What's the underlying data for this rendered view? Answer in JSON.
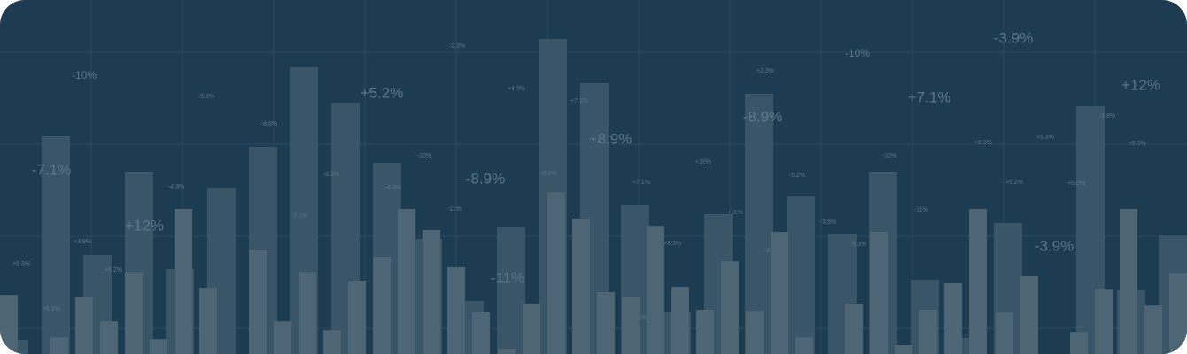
{
  "colors": {
    "background": "#1e3c51",
    "bar_back": "#3a5567",
    "bar_front": "#4d6575",
    "label": "#5d7688",
    "grid": "#35536a"
  },
  "back_bars": [
    {
      "id": 0,
      "value": 0.04
    },
    {
      "id": 1,
      "value": 0.615
    },
    {
      "id": 2,
      "value": 0.28
    },
    {
      "id": 3,
      "value": 0.515
    },
    {
      "id": 4,
      "value": 0.24
    },
    {
      "id": 5,
      "value": 0.47
    },
    {
      "id": 6,
      "value": 0.585
    },
    {
      "id": 7,
      "value": 0.81
    },
    {
      "id": 8,
      "value": 0.71
    },
    {
      "id": 9,
      "value": 0.54
    },
    {
      "id": 10,
      "value": 0.325
    },
    {
      "id": 11,
      "value": 0.15
    },
    {
      "id": 12,
      "value": 0.36
    },
    {
      "id": 13,
      "value": 0.89
    },
    {
      "id": 14,
      "value": 0.765
    },
    {
      "id": 15,
      "value": 0.42
    },
    {
      "id": 16,
      "value": 0.12
    },
    {
      "id": 17,
      "value": 0.395
    },
    {
      "id": 18,
      "value": 0.735
    },
    {
      "id": 19,
      "value": 0.447
    },
    {
      "id": 20,
      "value": 0.34
    },
    {
      "id": 21,
      "value": 0.515
    },
    {
      "id": 22,
      "value": 0.21
    },
    {
      "id": 23,
      "value": 0.045
    },
    {
      "id": 24,
      "value": 0.37
    },
    {
      "id": 25,
      "value": 0.7
    },
    {
      "id": 26,
      "value": 0.18
    },
    {
      "id": 27,
      "value": 0.337
    }
  ],
  "front_bars": [
    {
      "id": 0,
      "value": 0.167
    },
    {
      "id": 1,
      "value": 0.047
    },
    {
      "id": 2,
      "value": 0.16
    },
    {
      "id": 3,
      "value": 0.092
    },
    {
      "id": 4,
      "value": 0.232
    },
    {
      "id": 5,
      "value": 0.042
    },
    {
      "id": 6,
      "value": 0.41
    },
    {
      "id": 7,
      "value": 0.187
    },
    {
      "id": 8,
      "value": 0.295
    },
    {
      "id": 9,
      "value": 0.092
    },
    {
      "id": 10,
      "value": 0.232
    },
    {
      "id": 11,
      "value": 0.067
    },
    {
      "id": 12,
      "value": 0.205
    },
    {
      "id": 13,
      "value": 0.275
    },
    {
      "id": 14,
      "value": 0.41
    },
    {
      "id": 15,
      "value": 0.35
    },
    {
      "id": 16,
      "value": 0.245
    },
    {
      "id": 17,
      "value": 0.118
    },
    {
      "id": 18,
      "value": 0.015
    },
    {
      "id": 19,
      "value": 0.142
    },
    {
      "id": 20,
      "value": 0.457
    },
    {
      "id": 21,
      "value": 0.382
    },
    {
      "id": 22,
      "value": 0.175
    },
    {
      "id": 23,
      "value": 0.16
    },
    {
      "id": 24,
      "value": 0.362
    },
    {
      "id": 25,
      "value": 0.19
    },
    {
      "id": 26,
      "value": 0.125
    },
    {
      "id": 27,
      "value": 0.262
    },
    {
      "id": 28,
      "value": 0.122
    },
    {
      "id": 29,
      "value": 0.345
    },
    {
      "id": 30,
      "value": 0.047
    },
    {
      "id": 31,
      "value": 0.142
    },
    {
      "id": 32,
      "value": 0.345
    },
    {
      "id": 33,
      "value": 0.025
    },
    {
      "id": 34,
      "value": 0.125
    },
    {
      "id": 35,
      "value": 0.2
    },
    {
      "id": 36,
      "value": 0.41
    },
    {
      "id": 37,
      "value": 0.117
    },
    {
      "id": 38,
      "value": 0.22
    },
    {
      "id": 39,
      "value": 0.062
    },
    {
      "id": 40,
      "value": 0.182
    },
    {
      "id": 41,
      "value": 0.41
    },
    {
      "id": 42,
      "value": 0.137
    },
    {
      "id": 43,
      "value": 0.227
    }
  ],
  "percent_labels": [
    {
      "text": "-10%",
      "size": "medium"
    },
    {
      "text": "-5.2%",
      "size": "small"
    },
    {
      "text": "-2.3%",
      "size": "small"
    },
    {
      "text": "+4.3%",
      "size": "small"
    },
    {
      "text": "+7.1%",
      "size": "small"
    },
    {
      "text": "+2.3%",
      "size": "small"
    },
    {
      "text": "-10%",
      "size": "medium"
    },
    {
      "text": "-3.9%",
      "size": "large"
    },
    {
      "text": "+12%",
      "size": "large"
    },
    {
      "text": "+5.2%",
      "size": "large"
    },
    {
      "text": "-8.9%",
      "size": "small"
    },
    {
      "text": "-8.9%",
      "size": "large"
    },
    {
      "text": "+7.1%",
      "size": "large"
    },
    {
      "text": "-3.9%",
      "size": "small"
    },
    {
      "text": "+8.9%",
      "size": "large"
    },
    {
      "text": "-7.1%",
      "size": "large"
    },
    {
      "text": "-10%",
      "size": "small"
    },
    {
      "text": "+8.9%",
      "size": "small"
    },
    {
      "text": "+5.3%",
      "size": "small"
    },
    {
      "text": "+10%",
      "size": "small"
    },
    {
      "text": "-10%",
      "size": "small"
    },
    {
      "text": "-4.3%",
      "size": "small"
    },
    {
      "text": "-8.3%",
      "size": "small"
    },
    {
      "text": "+5.2%",
      "size": "small"
    },
    {
      "text": "-8.9%",
      "size": "large"
    },
    {
      "text": "-4.3%",
      "size": "small"
    },
    {
      "text": "+7.1%",
      "size": "small"
    },
    {
      "text": "+5.2%",
      "size": "small"
    },
    {
      "text": "+6.0%",
      "size": "small"
    },
    {
      "text": "-5.2%",
      "size": "small"
    },
    {
      "text": "+12%",
      "size": "large"
    },
    {
      "text": "-7.1%",
      "size": "small"
    },
    {
      "text": "-11%",
      "size": "small"
    },
    {
      "text": "+11%",
      "size": "small"
    },
    {
      "text": "-3.9%",
      "size": "small"
    },
    {
      "text": "-11%",
      "size": "small"
    },
    {
      "text": "+3.9%",
      "size": "small"
    },
    {
      "text": "-5.3%",
      "size": "small"
    },
    {
      "text": "+8.3%",
      "size": "small"
    },
    {
      "text": "-3.9%",
      "size": "small"
    },
    {
      "text": "+5.3%",
      "size": "small"
    },
    {
      "text": "+6.0%",
      "size": "small"
    },
    {
      "text": "-3.9%",
      "size": "small"
    },
    {
      "text": "+5.2%",
      "size": "large"
    },
    {
      "text": "-11%",
      "size": "large"
    },
    {
      "text": "+5.3%",
      "size": "small"
    },
    {
      "text": "-5.2%",
      "size": "small"
    }
  ]
}
